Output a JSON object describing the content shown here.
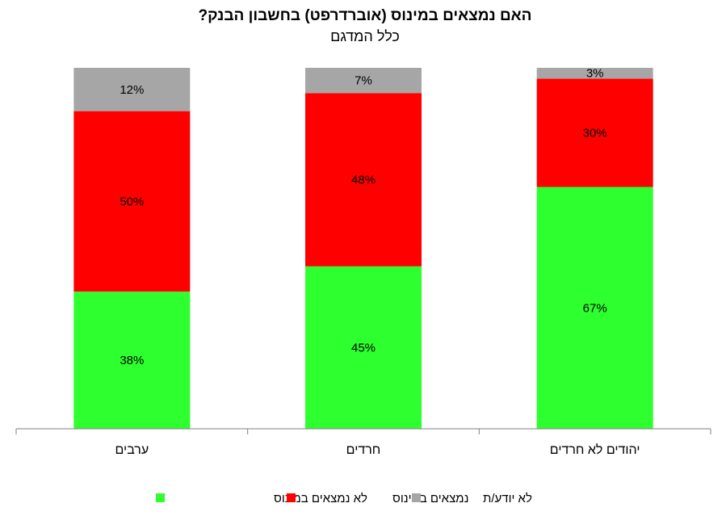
{
  "chart_data": {
    "type": "bar",
    "stacked": true,
    "normalized": true,
    "direction": "rtl",
    "title": "האם נמצאים במינוס (אוברדרפט) בחשבון הבנק?",
    "subtitle": "כלל המדגם",
    "categories": [
      "יהודים לא חרדים",
      "חרדים",
      "ערבים"
    ],
    "series": [
      {
        "name": "לא נמצאים במינוס",
        "values": [
          67,
          45,
          38
        ],
        "labels": [
          "67%",
          "45%",
          "38%"
        ],
        "color": "#2EFF2E"
      },
      {
        "name": "נמצאים במינוס",
        "values": [
          30,
          48,
          50
        ],
        "labels": [
          "30%",
          "48%",
          "50%"
        ],
        "color": "#FF0000"
      },
      {
        "name": "לא יודע/ת",
        "values": [
          3,
          7,
          12
        ],
        "labels": [
          "3%",
          "7%",
          "12%"
        ],
        "color": "#A6A6A6"
      }
    ],
    "ylim": [
      0,
      100
    ],
    "grid": false,
    "legend_position": "bottom"
  }
}
